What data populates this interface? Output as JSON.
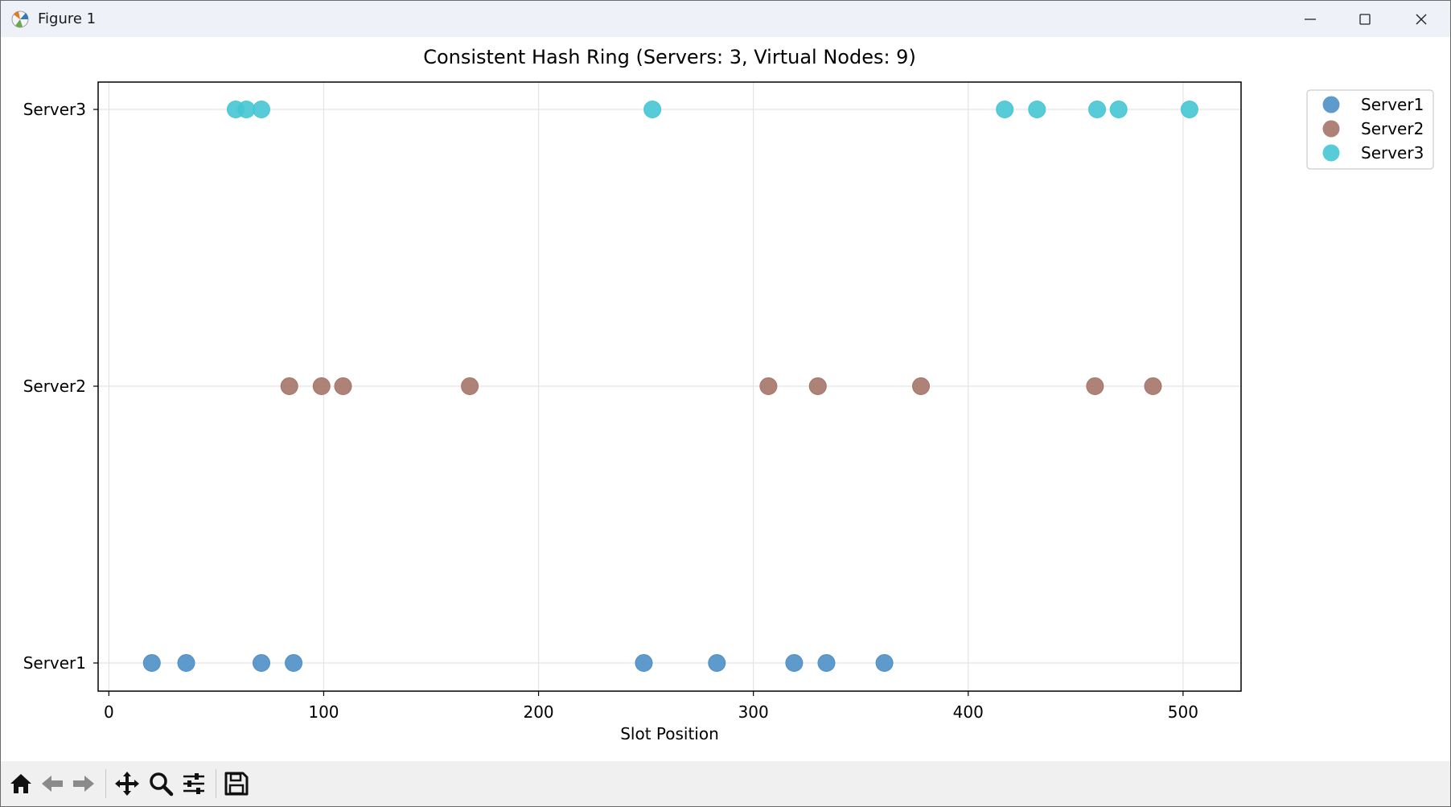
{
  "window": {
    "title": "Figure 1"
  },
  "toolbar": {
    "buttons": [
      {
        "name": "home-icon",
        "label": "Home"
      },
      {
        "name": "back-icon",
        "label": "Back"
      },
      {
        "name": "forward-icon",
        "label": "Forward"
      },
      {
        "name": "pan-icon",
        "label": "Pan"
      },
      {
        "name": "zoom-icon",
        "label": "Zoom"
      },
      {
        "name": "configure-subplots-icon",
        "label": "Configure subplots"
      },
      {
        "name": "save-icon",
        "label": "Save"
      }
    ]
  },
  "chart_data": {
    "type": "scatter",
    "title": "Consistent Hash Ring (Servers: 3, Virtual Nodes: 9)",
    "xlabel": "Slot Position",
    "ylabel": "",
    "xlim": [
      -5,
      527
    ],
    "xticks": [
      0,
      100,
      200,
      300,
      400,
      500
    ],
    "categories": [
      "Server1",
      "Server2",
      "Server3"
    ],
    "grid": true,
    "legend_position": "outside-top-right",
    "series": [
      {
        "name": "Server1",
        "color": "#4e8fc6",
        "y": "Server1",
        "x": [
          20,
          36,
          71,
          86,
          249,
          283,
          319,
          334,
          361
        ]
      },
      {
        "name": "Server2",
        "color": "#a57468",
        "y": "Server2",
        "x": [
          84,
          99,
          109,
          168,
          307,
          330,
          378,
          459,
          486
        ]
      },
      {
        "name": "Server3",
        "color": "#45c7d4",
        "y": "Server3",
        "x": [
          59,
          64,
          71,
          253,
          417,
          432,
          460,
          470,
          503
        ]
      }
    ]
  }
}
